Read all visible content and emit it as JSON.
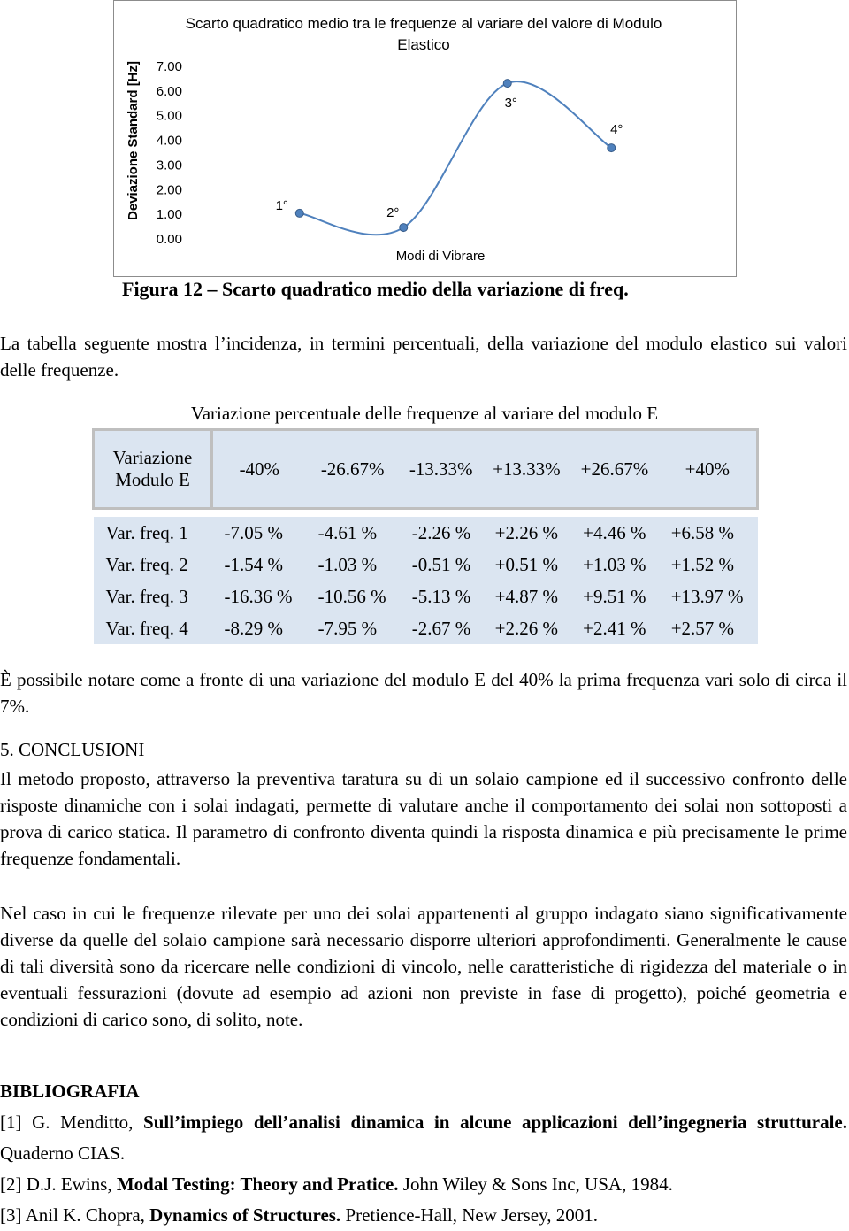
{
  "chart_data": {
    "type": "line",
    "title": "Scarto quadratico medio tra le frequenze al variare del valore di Modulo Elastico",
    "y_label": "Deviazione Standard  [Hz]",
    "x_label": "Modi di Vibrare",
    "categories": [
      "1°",
      "2°",
      "3°",
      "4°"
    ],
    "series": [
      {
        "color": "#4f81bd",
        "values": [
          1.08,
          0.5,
          6.35,
          3.73
        ]
      }
    ],
    "ylim": [
      0,
      7
    ],
    "yticks": [
      {
        "value": 0,
        "label": "0.00"
      },
      {
        "value": 1,
        "label": "1.00"
      },
      {
        "value": 2,
        "label": "2.00"
      },
      {
        "value": 3,
        "label": "3.00"
      },
      {
        "value": 4,
        "label": "4.00"
      },
      {
        "value": 5,
        "label": "5.00"
      },
      {
        "value": 6,
        "label": "6.00"
      },
      {
        "value": 7,
        "label": "7.00"
      }
    ],
    "grid": false
  },
  "figure_caption": "Figura 12 – Scarto quadratico medio della variazione di freq.",
  "intro_paragraph": "La tabella seguente mostra l’incidenza, in termini percentuali, della variazione del modulo elastico sui valori delle frequenze.",
  "table": {
    "caption": "Variazione percentuale delle frequenze al variare del modulo E",
    "corner": "Variazione Modulo E",
    "columns": [
      "-40%",
      "-26.67%",
      "-13.33%",
      "+13.33%",
      "+26.67%",
      "+40%"
    ],
    "rows": [
      {
        "label": "Var. freq. 1",
        "cells": [
          "-7.05 %",
          "-4.61 %",
          "-2.26 %",
          "+2.26 %",
          "+4.46 %",
          "+6.58 %"
        ]
      },
      {
        "label": "Var. freq. 2",
        "cells": [
          "-1.54 %",
          "-1.03 %",
          "-0.51 %",
          "+0.51 %",
          "+1.03 %",
          "+1.52 %"
        ]
      },
      {
        "label": "Var. freq. 3",
        "cells": [
          "-16.36 %",
          "-10.56 %",
          "-5.13 %",
          "+4.87 %",
          "+9.51 %",
          "+13.97 %"
        ]
      },
      {
        "label": "Var. freq. 4",
        "cells": [
          "-8.29 %",
          "-7.95 %",
          "-2.67 %",
          "+2.26 %",
          "+2.41 %",
          "+2.57 %"
        ]
      }
    ]
  },
  "note_paragraph": "È possibile notare come a fronte di una variazione del modulo E del 40% la prima frequenza vari solo di circa il 7%.",
  "section": {
    "heading": "5. CONCLUSIONI",
    "paragraphs": [
      "Il metodo proposto, attraverso la preventiva taratura su di un solaio campione ed il successivo confronto delle risposte dinamiche con i solai indagati, permette di valutare anche il comportamento dei solai non sottoposti a prova di carico statica. Il parametro di confronto diventa quindi la risposta dinamica e più precisamente le prime frequenze fondamentali.",
      "Nel caso in cui le frequenze rilevate per uno dei solai appartenenti al gruppo indagato siano significativamente diverse da quelle del solaio campione sarà necessario disporre ulteriori approfondimenti. Generalmente le cause di tali diversità sono da ricercare nelle condizioni di vincolo, nelle caratteristiche di rigidezza del materiale o in eventuali fessurazioni (dovute ad esempio ad azioni non previste in fase di progetto), poiché geometria e condizioni di carico sono, di solito, note."
    ]
  },
  "bibliography": {
    "heading": "BIBLIOGRAFIA",
    "references": [
      {
        "number": "[1]",
        "authors": "G. Menditto,",
        "title": "Sull’impiego dell’analisi dinamica in alcune applicazioni dell’ingegneria strutturale.",
        "source": "Quaderno CIAS."
      },
      {
        "number": "[2]",
        "authors": "D.J. Ewins,",
        "title": "Modal Testing: Theory and Pratice.",
        "source": "John Wiley & Sons Inc, USA, 1984."
      },
      {
        "number": "[3]",
        "authors": "Anil K. Chopra,",
        "title": "Dynamics of Structures.",
        "source": "Pretience-Hall,  New Jersey, 2001."
      }
    ]
  }
}
